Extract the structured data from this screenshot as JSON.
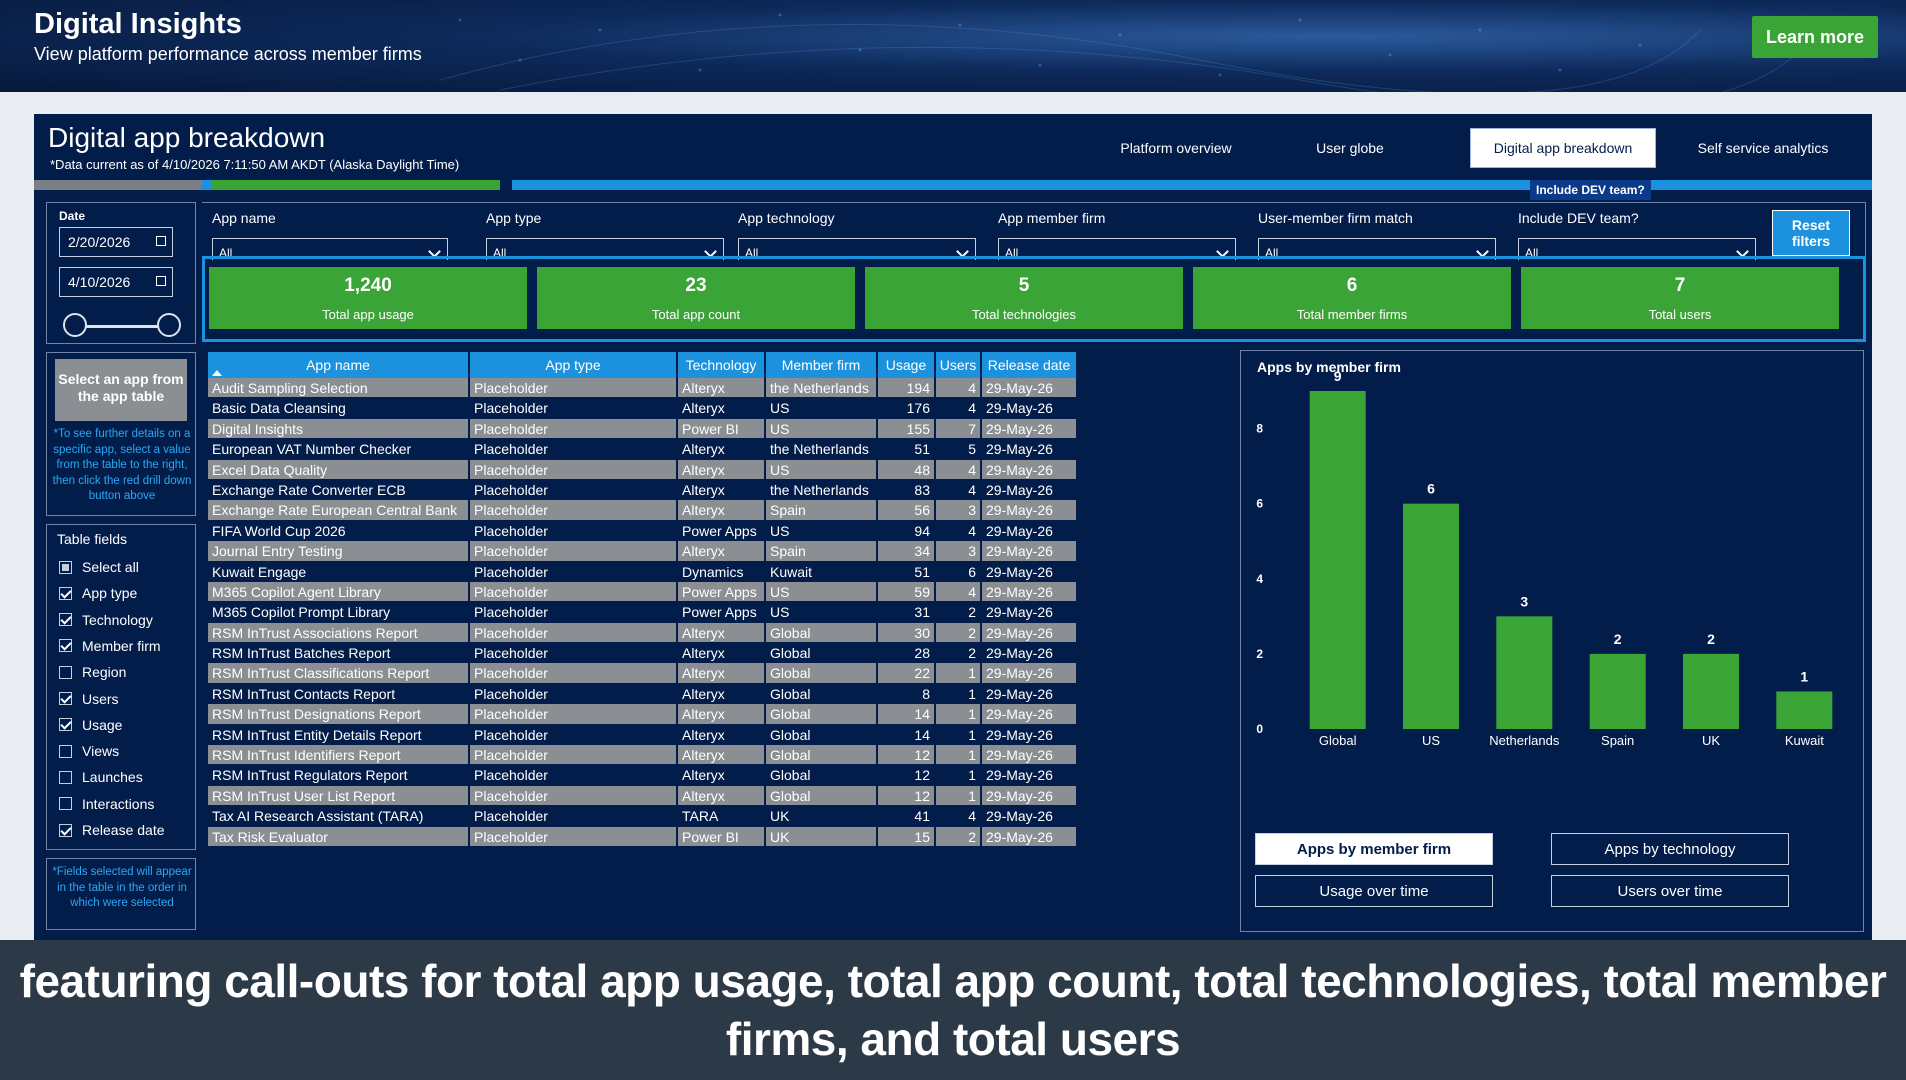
{
  "banner": {
    "title": "Digital Insights",
    "subtitle": "View platform performance across member firms",
    "learn_more": "Learn more"
  },
  "report": {
    "title": "Digital app breakdown",
    "data_current": "*Data current as of 4/10/2026 7:11:50 AM AKDT (Alaska Daylight Time)",
    "tabs": [
      {
        "label": "Platform overview",
        "active": false
      },
      {
        "label": "User globe",
        "active": false
      },
      {
        "label": "Digital app breakdown",
        "active": true
      },
      {
        "label": "Self service analytics",
        "active": false
      }
    ],
    "dev_tag": "Include DEV team?"
  },
  "date": {
    "label": "Date",
    "start": "2/20/2026",
    "end": "4/10/2026"
  },
  "filters": [
    {
      "label": "App name",
      "value": "All"
    },
    {
      "label": "App type",
      "value": "All"
    },
    {
      "label": "App technology",
      "value": "All"
    },
    {
      "label": "App member firm",
      "value": "All"
    },
    {
      "label": "User-member firm match",
      "value": "All"
    },
    {
      "label": "Include DEV team?",
      "value": "All"
    }
  ],
  "reset_label": "Reset filters",
  "kpis": [
    {
      "value": "1,240",
      "label": "Total app usage"
    },
    {
      "value": "23",
      "label": "Total app count"
    },
    {
      "value": "5",
      "label": "Total technologies"
    },
    {
      "value": "6",
      "label": "Total member firms"
    },
    {
      "value": "7",
      "label": "Total users"
    }
  ],
  "select_app": {
    "button": "Select an app from the app table",
    "note": "*To see further details on a specific app, select a value from the table to the right, then click the red drill down button above"
  },
  "table_fields": {
    "title": "Table fields",
    "items": [
      {
        "label": "Select all",
        "state": "partial"
      },
      {
        "label": "App type",
        "state": "checked"
      },
      {
        "label": "Technology",
        "state": "checked"
      },
      {
        "label": "Member firm",
        "state": "checked"
      },
      {
        "label": "Region",
        "state": "unchecked"
      },
      {
        "label": "Users",
        "state": "checked"
      },
      {
        "label": "Usage",
        "state": "checked"
      },
      {
        "label": "Views",
        "state": "unchecked"
      },
      {
        "label": "Launches",
        "state": "unchecked"
      },
      {
        "label": "Interactions",
        "state": "unchecked"
      },
      {
        "label": "Release date",
        "state": "checked"
      }
    ],
    "note": "*Fields selected will appear in the table in the order in which were selected"
  },
  "table": {
    "columns": [
      "App name",
      "App type",
      "Technology",
      "Member firm",
      "Usage",
      "Users",
      "Release date"
    ],
    "rows": [
      [
        "Audit Sampling Selection",
        "Placeholder",
        "Alteryx",
        "the Netherlands",
        "194",
        "4",
        "29-May-26"
      ],
      [
        "Basic Data Cleansing",
        "Placeholder",
        "Alteryx",
        "US",
        "176",
        "4",
        "29-May-26"
      ],
      [
        "Digital Insights",
        "Placeholder",
        "Power BI",
        "US",
        "155",
        "7",
        "29-May-26"
      ],
      [
        "European VAT Number Checker",
        "Placeholder",
        "Alteryx",
        "the Netherlands",
        "51",
        "5",
        "29-May-26"
      ],
      [
        "Excel Data Quality",
        "Placeholder",
        "Alteryx",
        "US",
        "48",
        "4",
        "29-May-26"
      ],
      [
        "Exchange Rate Converter ECB",
        "Placeholder",
        "Alteryx",
        "the Netherlands",
        "83",
        "4",
        "29-May-26"
      ],
      [
        "Exchange Rate European Central Bank",
        "Placeholder",
        "Alteryx",
        "Spain",
        "56",
        "3",
        "29-May-26"
      ],
      [
        "FIFA World Cup 2026",
        "Placeholder",
        "Power Apps",
        "US",
        "94",
        "4",
        "29-May-26"
      ],
      [
        "Journal Entry Testing",
        "Placeholder",
        "Alteryx",
        "Spain",
        "34",
        "3",
        "29-May-26"
      ],
      [
        "Kuwait Engage",
        "Placeholder",
        "Dynamics",
        "Kuwait",
        "51",
        "6",
        "29-May-26"
      ],
      [
        "M365 Copilot Agent Library",
        "Placeholder",
        "Power Apps",
        "US",
        "59",
        "4",
        "29-May-26"
      ],
      [
        "M365 Copilot Prompt Library",
        "Placeholder",
        "Power Apps",
        "US",
        "31",
        "2",
        "29-May-26"
      ],
      [
        "RSM InTrust Associations Report",
        "Placeholder",
        "Alteryx",
        "Global",
        "30",
        "2",
        "29-May-26"
      ],
      [
        "RSM InTrust Batches Report",
        "Placeholder",
        "Alteryx",
        "Global",
        "28",
        "2",
        "29-May-26"
      ],
      [
        "RSM InTrust Classifications Report",
        "Placeholder",
        "Alteryx",
        "Global",
        "22",
        "1",
        "29-May-26"
      ],
      [
        "RSM InTrust Contacts Report",
        "Placeholder",
        "Alteryx",
        "Global",
        "8",
        "1",
        "29-May-26"
      ],
      [
        "RSM InTrust Designations Report",
        "Placeholder",
        "Alteryx",
        "Global",
        "14",
        "1",
        "29-May-26"
      ],
      [
        "RSM InTrust Entity Details Report",
        "Placeholder",
        "Alteryx",
        "Global",
        "14",
        "1",
        "29-May-26"
      ],
      [
        "RSM InTrust Identifiers Report",
        "Placeholder",
        "Alteryx",
        "Global",
        "12",
        "1",
        "29-May-26"
      ],
      [
        "RSM InTrust Regulators Report",
        "Placeholder",
        "Alteryx",
        "Global",
        "12",
        "1",
        "29-May-26"
      ],
      [
        "RSM InTrust User List Report",
        "Placeholder",
        "Alteryx",
        "Global",
        "12",
        "1",
        "29-May-26"
      ],
      [
        "Tax AI Research Assistant (TARA)",
        "Placeholder",
        "TARA",
        "UK",
        "41",
        "4",
        "29-May-26"
      ],
      [
        "Tax Risk Evaluator",
        "Placeholder",
        "Power BI",
        "UK",
        "15",
        "2",
        "29-May-26"
      ]
    ]
  },
  "chart_buttons": [
    {
      "label": "Apps by member firm",
      "active": true
    },
    {
      "label": "Apps by technology",
      "active": false
    },
    {
      "label": "Usage over time",
      "active": false
    },
    {
      "label": "Users over time",
      "active": false
    }
  ],
  "chart_data": {
    "type": "bar",
    "title": "Apps by member firm",
    "categories": [
      "Global",
      "US",
      "Netherlands",
      "Spain",
      "UK",
      "Kuwait"
    ],
    "values": [
      9,
      6,
      3,
      2,
      2,
      1
    ],
    "yticks": [
      0,
      2,
      4,
      6,
      8
    ],
    "ylim": [
      0,
      9
    ],
    "grid": false,
    "bar_color": "#3ba437"
  },
  "caption": "featuring call-outs for total app usage, total app count, total technologies, total member firms, and total users",
  "colors": {
    "navy": "#031d4b",
    "green": "#3ba437",
    "blue": "#1c92df",
    "gray": "#8b8e93"
  }
}
